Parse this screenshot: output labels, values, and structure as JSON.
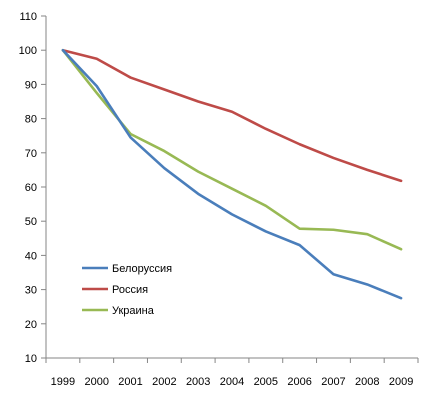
{
  "chart_data": {
    "type": "line",
    "title": "",
    "xlabel": "",
    "ylabel": "",
    "categories": [
      "1999",
      "2000",
      "2001",
      "2002",
      "2003",
      "2004",
      "2005",
      "2006",
      "2007",
      "2008",
      "2009"
    ],
    "ylim": [
      10,
      110
    ],
    "yticks": [
      "10",
      "20",
      "30",
      "40",
      "50",
      "60",
      "70",
      "80",
      "90",
      "100",
      "110"
    ],
    "grid": false,
    "legend_position": "bottom-left",
    "series": [
      {
        "name": "Белоруссия",
        "color": "#4a7ebb",
        "values": [
          100,
          89.5,
          74.5,
          65.5,
          58,
          52,
          47,
          43,
          34.5,
          31.5,
          27.5
        ]
      },
      {
        "name": "Россия",
        "color": "#be4b48",
        "values": [
          100,
          97.5,
          92,
          88.5,
          85,
          82,
          77,
          72.5,
          68.5,
          65,
          61.8
        ]
      },
      {
        "name": "Украина",
        "color": "#98b954",
        "values": [
          100,
          87.5,
          75.5,
          70.5,
          64.5,
          59.5,
          54.5,
          47.8,
          47.5,
          46.2,
          41.8
        ]
      }
    ]
  }
}
